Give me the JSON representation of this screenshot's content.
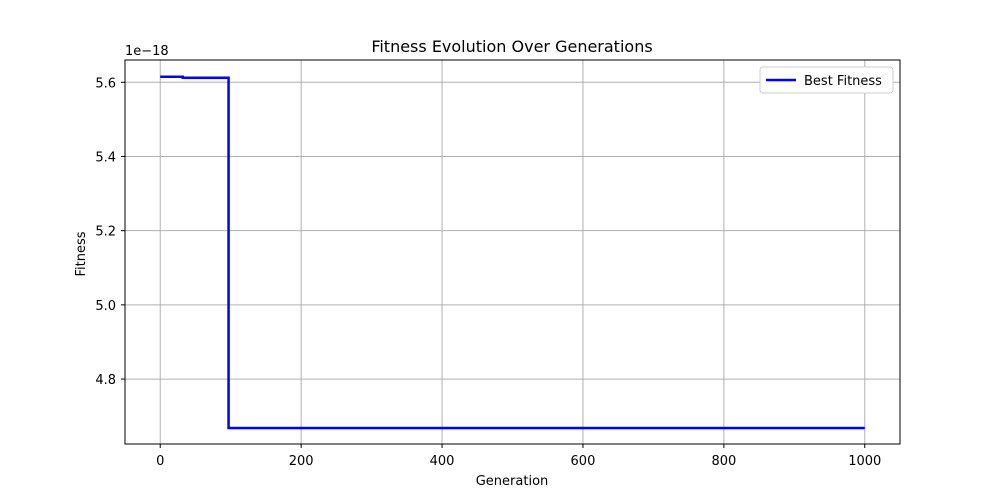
{
  "chart_data": {
    "type": "line",
    "title": "Fitness Evolution Over Generations",
    "xlabel": "Generation",
    "ylabel": "Fitness",
    "y_offset_label": "1e−18",
    "xlim": [
      -50,
      1050
    ],
    "ylim": [
      4.625,
      5.66
    ],
    "x_ticks": [
      0,
      200,
      400,
      600,
      800,
      1000
    ],
    "x_tick_labels": [
      "0",
      "200",
      "400",
      "600",
      "800",
      "1000"
    ],
    "y_ticks": [
      4.8,
      5.0,
      5.2,
      5.4,
      5.6
    ],
    "y_tick_labels": [
      "4.8",
      "5.0",
      "5.2",
      "5.4",
      "5.6"
    ],
    "grid": true,
    "legend_position": "upper-right",
    "series": [
      {
        "name": "Best Fitness",
        "color": "#0000ff",
        "step": true,
        "x": [
          0,
          30,
          32,
          96,
          97,
          1000
        ],
        "y": [
          5.615,
          5.615,
          5.612,
          5.612,
          4.668,
          4.668
        ]
      }
    ]
  }
}
